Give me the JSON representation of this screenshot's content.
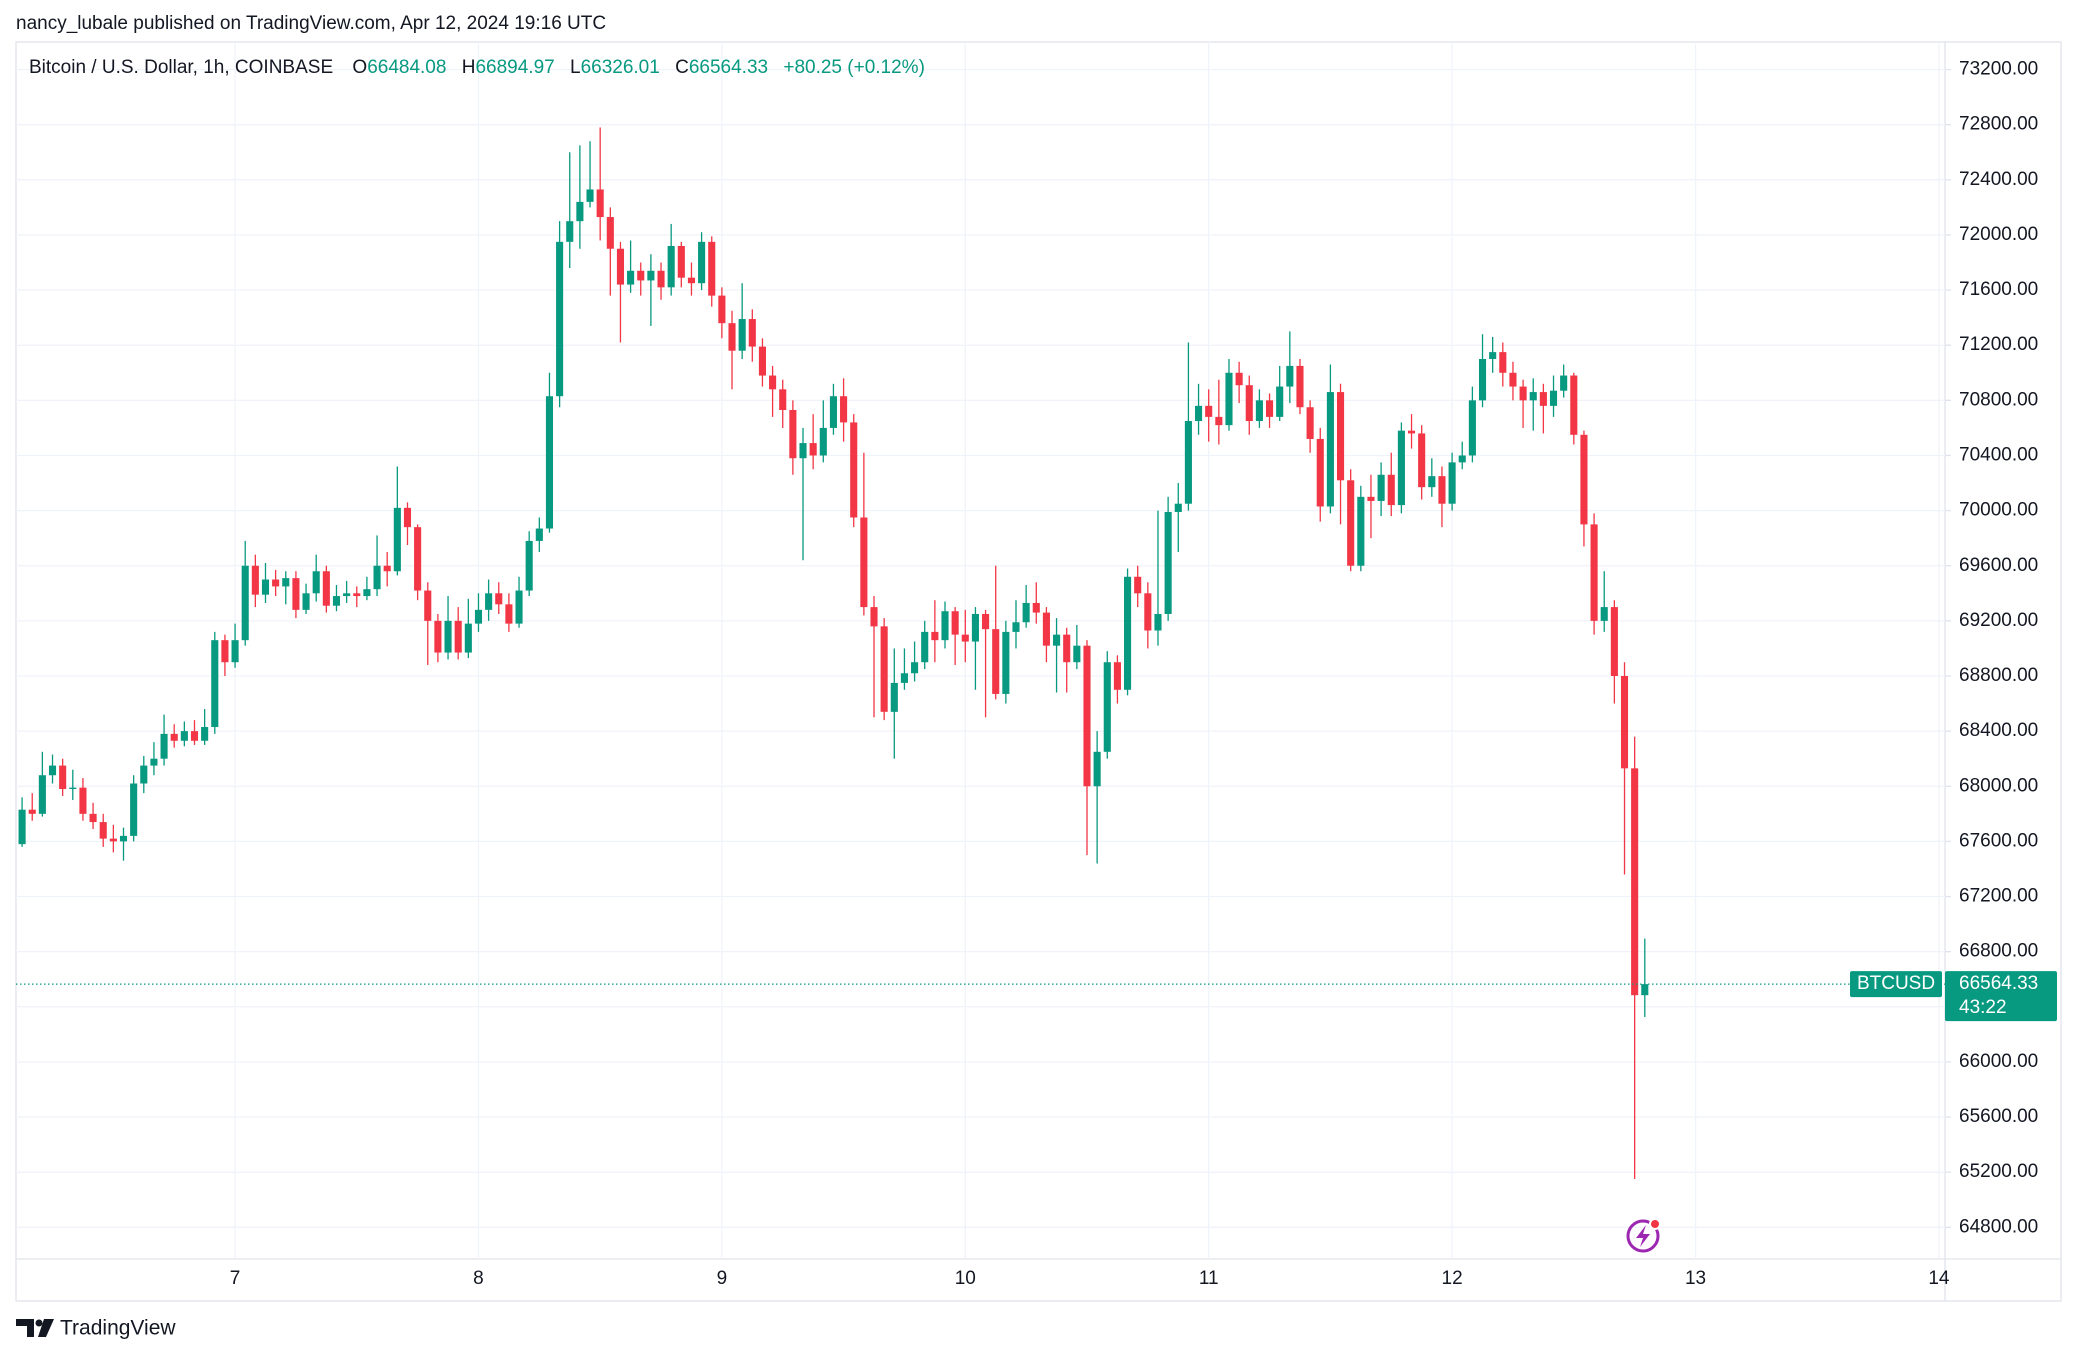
{
  "header": {
    "publisher": "nancy_lubale published on TradingView.com, Apr 12, 2024 19:16 UTC"
  },
  "footer": {
    "brand": "TradingView"
  },
  "chart_data": {
    "type": "candlestick",
    "title": "Bitcoin / U.S. Dollar, 1h, COINBASE",
    "ohlc_labels": [
      "O",
      "H",
      "L",
      "C"
    ],
    "change": "+80.25 (+0.12%)",
    "symbol": "BTCUSD",
    "countdown": "43:22",
    "up_color": "#089981",
    "down_color": "#f23645",
    "grid": true,
    "xlim": [
      2.4,
      192.6
    ],
    "xticks": [
      {
        "value": 24,
        "label": "7"
      },
      {
        "value": 48,
        "label": "8"
      },
      {
        "value": 72,
        "label": "9"
      },
      {
        "value": 96,
        "label": "10"
      },
      {
        "value": 120,
        "label": "11"
      },
      {
        "value": 144,
        "label": "12"
      },
      {
        "value": 168,
        "label": "13"
      },
      {
        "value": 192,
        "label": "14"
      }
    ],
    "ylim": [
      64570,
      73400
    ],
    "yticks": [
      {
        "value": 64800,
        "label": "64800.00"
      },
      {
        "value": 65200,
        "label": "65200.00"
      },
      {
        "value": 65600,
        "label": "65600.00"
      },
      {
        "value": 66000,
        "label": "66000.00"
      },
      {
        "value": 66400,
        "label": "66400.00"
      },
      {
        "value": 66800,
        "label": "66800.00"
      },
      {
        "value": 67200,
        "label": "67200.00"
      },
      {
        "value": 67600,
        "label": "67600.00"
      },
      {
        "value": 68000,
        "label": "68000.00"
      },
      {
        "value": 68400,
        "label": "68400.00"
      },
      {
        "value": 68800,
        "label": "68800.00"
      },
      {
        "value": 69200,
        "label": "69200.00"
      },
      {
        "value": 69600,
        "label": "69600.00"
      },
      {
        "value": 70000,
        "label": "70000.00"
      },
      {
        "value": 70400,
        "label": "70400.00"
      },
      {
        "value": 70800,
        "label": "70800.00"
      },
      {
        "value": 71200,
        "label": "71200.00"
      },
      {
        "value": 71600,
        "label": "71600.00"
      },
      {
        "value": 72000,
        "label": "72000.00"
      },
      {
        "value": 72400,
        "label": "72400.00"
      },
      {
        "value": 72800,
        "label": "72800.00"
      },
      {
        "value": 73200,
        "label": "73200.00"
      }
    ],
    "x": [
      3,
      4,
      5,
      6,
      7,
      8,
      9,
      10,
      11,
      12,
      13,
      14,
      15,
      16,
      17,
      18,
      19,
      20,
      21,
      22,
      23,
      24,
      25,
      26,
      27,
      28,
      29,
      30,
      31,
      32,
      33,
      34,
      35,
      36,
      37,
      38,
      39,
      40,
      41,
      42,
      43,
      44,
      45,
      46,
      47,
      48,
      49,
      50,
      51,
      52,
      53,
      54,
      55,
      56,
      57,
      58,
      59,
      60,
      61,
      62,
      63,
      64,
      65,
      66,
      67,
      68,
      69,
      70,
      71,
      72,
      73,
      74,
      75,
      76,
      77,
      78,
      79,
      80,
      81,
      82,
      83,
      84,
      85,
      86,
      87,
      88,
      89,
      90,
      91,
      92,
      93,
      94,
      95,
      96,
      97,
      98,
      99,
      100,
      101,
      102,
      103,
      104,
      105,
      106,
      107,
      108,
      109,
      110,
      111,
      112,
      113,
      114,
      115,
      116,
      117,
      118,
      119,
      120,
      121,
      122,
      123,
      124,
      125,
      126,
      127,
      128,
      129,
      130,
      131,
      132,
      133,
      134,
      135,
      136,
      137,
      138,
      139,
      140,
      141,
      142,
      143,
      144,
      145,
      146,
      147,
      148,
      149,
      150,
      151,
      152,
      153,
      154,
      155,
      156,
      157,
      158,
      159,
      160,
      161,
      162,
      163
    ],
    "open": [
      67580,
      67830,
      67800,
      68080,
      68150,
      67980,
      67990,
      67800,
      67740,
      67620,
      67600,
      67640,
      68020,
      68150,
      68200,
      68380,
      68330,
      68400,
      68330,
      68430,
      69060,
      68900,
      69060,
      69600,
      69390,
      69500,
      69450,
      69510,
      69280,
      69400,
      69560,
      69310,
      69380,
      69400,
      69380,
      69430,
      69600,
      69560,
      70020,
      69880,
      69420,
      69200,
      68970,
      69200,
      68970,
      69180,
      69280,
      69400,
      69320,
      69180,
      69420,
      69780,
      69870,
      70830,
      71950,
      72100,
      72240,
      72330,
      72130,
      71900,
      71640,
      71740,
      71670,
      71740,
      71620,
      71920,
      71690,
      71650,
      71950,
      71560,
      71360,
      71160,
      71390,
      71190,
      70980,
      70880,
      70730,
      70380,
      70490,
      70400,
      70600,
      70830,
      70640,
      69950,
      69300,
      69160,
      68540,
      68750,
      68820,
      68900,
      69120,
      69060,
      69270,
      69100,
      69050,
      69250,
      69140,
      68670,
      69120,
      69190,
      69330,
      69260,
      69020,
      69100,
      68900,
      69020,
      68000,
      68250,
      68900,
      68700,
      69520,
      69400,
      69130,
      69250,
      69990,
      70050,
      70650,
      70760,
      70680,
      70620,
      71000,
      70910,
      70650,
      70800,
      70680,
      70900,
      71050,
      70750,
      70520,
      70030,
      70860,
      70220,
      69600,
      70100,
      70070,
      70260,
      70040,
      70580,
      70560,
      70170,
      70250,
      70050,
      70350,
      70400,
      70800,
      71100,
      71150,
      71000,
      70900,
      70800,
      70860,
      70760,
      70870,
      70980,
      70550,
      69900,
      69200,
      69300,
      68800,
      68130,
      66484.08
    ],
    "high": [
      67920,
      67950,
      68250,
      68230,
      68200,
      68120,
      68060,
      67880,
      67800,
      67720,
      67700,
      68080,
      68220,
      68320,
      68520,
      68450,
      68470,
      68480,
      68560,
      69120,
      69100,
      69180,
      69780,
      69680,
      69620,
      69570,
      69560,
      69560,
      69470,
      69680,
      69600,
      69460,
      69490,
      69450,
      69520,
      69820,
      69700,
      70320,
      70060,
      69900,
      69480,
      69250,
      69380,
      69300,
      69360,
      69400,
      69500,
      69480,
      69400,
      69520,
      69850,
      69950,
      71000,
      72100,
      72600,
      72650,
      72680,
      72780,
      72200,
      71950,
      71960,
      71800,
      71860,
      71800,
      72080,
      71950,
      71800,
      72020,
      71990,
      71620,
      71450,
      71650,
      71460,
      71250,
      71050,
      70950,
      70800,
      70600,
      70700,
      70800,
      70920,
      70960,
      70700,
      70420,
      69380,
      69220,
      69000,
      69000,
      69050,
      69200,
      69350,
      69340,
      69300,
      69280,
      69300,
      69280,
      69600,
      69200,
      69350,
      69460,
      69480,
      69300,
      69220,
      69150,
      69170,
      69060,
      68400,
      68980,
      68950,
      69580,
      69600,
      69480,
      70000,
      70100,
      70200,
      71220,
      70920,
      70880,
      70950,
      71100,
      71080,
      70980,
      70880,
      70850,
      71050,
      71300,
      71100,
      70800,
      70600,
      71060,
      70920,
      70300,
      70180,
      70260,
      70350,
      70420,
      70640,
      70700,
      70620,
      70380,
      70320,
      70420,
      70500,
      70900,
      71280,
      71260,
      71220,
      71080,
      70950,
      70960,
      70920,
      70980,
      71060,
      71000,
      70580,
      69980,
      69560,
      69350,
      68900,
      68360,
      66894.97
    ],
    "low": [
      67560,
      67750,
      67780,
      68020,
      67930,
      67900,
      67750,
      67690,
      67560,
      67520,
      67460,
      67600,
      67950,
      68080,
      68150,
      68280,
      68290,
      68300,
      68300,
      68380,
      68800,
      68860,
      69020,
      69300,
      69330,
      69380,
      69320,
      69220,
      69250,
      69340,
      69260,
      69270,
      69330,
      69300,
      69350,
      69380,
      69450,
      69530,
      69750,
      69350,
      68880,
      68900,
      68920,
      68920,
      68930,
      69120,
      69200,
      69250,
      69120,
      69150,
      69380,
      69700,
      69840,
      70750,
      71760,
      71900,
      72200,
      71960,
      71560,
      71220,
      71580,
      71560,
      71340,
      71530,
      71560,
      71620,
      71560,
      71600,
      71480,
      71250,
      70880,
      71100,
      71080,
      70900,
      70680,
      70600,
      70260,
      69640,
      70300,
      70350,
      70550,
      70500,
      69880,
      69240,
      68500,
      68480,
      68200,
      68700,
      68760,
      68850,
      68900,
      69000,
      68880,
      68900,
      68700,
      68500,
      68630,
      68600,
      69000,
      69150,
      69180,
      68900,
      68680,
      68680,
      68850,
      67500,
      67440,
      68200,
      68600,
      68660,
      69300,
      69000,
      69020,
      69200,
      69700,
      70000,
      70550,
      70500,
      70480,
      70580,
      70780,
      70550,
      70600,
      70600,
      70650,
      70780,
      70700,
      70420,
      69920,
      69980,
      69900,
      69560,
      69560,
      69800,
      69960,
      69960,
      69980,
      70450,
      70080,
      70100,
      69880,
      70000,
      70300,
      70350,
      70750,
      71000,
      70900,
      70800,
      70600,
      70580,
      70560,
      70680,
      70820,
      70480,
      69740,
      69100,
      69120,
      68600,
      67360,
      65150,
      66326.01
    ],
    "close": [
      67830,
      67800,
      68080,
      68150,
      67980,
      67990,
      67800,
      67740,
      67620,
      67600,
      67640,
      68020,
      68150,
      68200,
      68380,
      68330,
      68400,
      68330,
      68430,
      69060,
      68900,
      69060,
      69600,
      69390,
      69500,
      69450,
      69510,
      69280,
      69400,
      69560,
      69310,
      69380,
      69400,
      69380,
      69430,
      69600,
      69560,
      70020,
      69880,
      69420,
      69200,
      68970,
      69200,
      68970,
      69180,
      69280,
      69400,
      69320,
      69180,
      69420,
      69780,
      69870,
      70830,
      71950,
      72100,
      72240,
      72330,
      72130,
      71900,
      71640,
      71740,
      71670,
      71740,
      71620,
      71920,
      71690,
      71650,
      71950,
      71560,
      71360,
      71160,
      71390,
      71190,
      70980,
      70880,
      70730,
      70380,
      70490,
      70400,
      70600,
      70830,
      70640,
      69950,
      69300,
      69160,
      68540,
      68750,
      68820,
      68900,
      69120,
      69060,
      69270,
      69100,
      69050,
      69250,
      69140,
      68670,
      69120,
      69190,
      69330,
      69260,
      69020,
      69100,
      68900,
      69020,
      68000,
      68250,
      68900,
      68700,
      69520,
      69400,
      69130,
      69250,
      69990,
      70050,
      70650,
      70760,
      70680,
      70620,
      71000,
      70910,
      70650,
      70800,
      70680,
      70900,
      71050,
      70750,
      70520,
      70030,
      70860,
      70220,
      69600,
      70100,
      70070,
      70260,
      70040,
      70580,
      70560,
      70170,
      70250,
      70050,
      70350,
      70400,
      70800,
      71100,
      71150,
      71000,
      70900,
      70800,
      70860,
      70760,
      70870,
      70980,
      70550,
      69900,
      69200,
      69300,
      68800,
      68130,
      66484.08,
      66564.33
    ]
  }
}
